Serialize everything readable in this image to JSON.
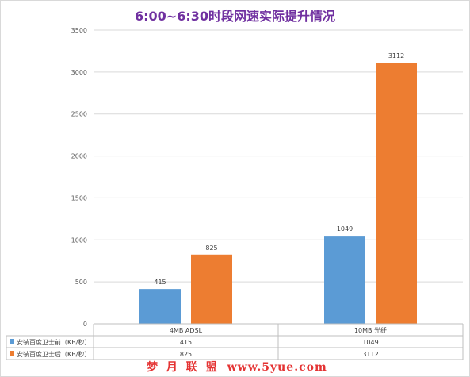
{
  "chart_data": {
    "type": "bar",
    "title": "6:00~6:30时段网速实际提升情况",
    "categories": [
      "4MB ADSL",
      "10MB 光纤"
    ],
    "series": [
      {
        "name": "安装百度卫士前（KB/秒）",
        "values": [
          415,
          1049
        ],
        "color": "#5b9bd5"
      },
      {
        "name": "安装百度卫士后（KB/秒）",
        "values": [
          825,
          3112
        ],
        "color": "#ed7d31"
      }
    ],
    "ylim": [
      0,
      3500
    ],
    "yticks": [
      0,
      500,
      1000,
      1500,
      2000,
      2500,
      3000,
      3500
    ],
    "grid": true,
    "legend": "data-table",
    "data_labels": true
  },
  "watermark": {
    "text": "梦 月 联 盟",
    "url": "www.5yue.com"
  }
}
